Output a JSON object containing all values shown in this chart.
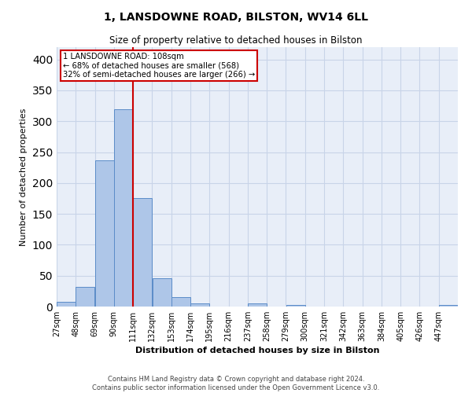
{
  "title1": "1, LANSDOWNE ROAD, BILSTON, WV14 6LL",
  "title2": "Size of property relative to detached houses in Bilston",
  "xlabel": "Distribution of detached houses by size in Bilston",
  "ylabel": "Number of detached properties",
  "bar_labels": [
    "27sqm",
    "48sqm",
    "69sqm",
    "90sqm",
    "111sqm",
    "132sqm",
    "153sqm",
    "174sqm",
    "195sqm",
    "216sqm",
    "237sqm",
    "258sqm",
    "279sqm",
    "300sqm",
    "321sqm",
    "342sqm",
    "363sqm",
    "384sqm",
    "405sqm",
    "426sqm",
    "447sqm"
  ],
  "bar_values": [
    8,
    32,
    237,
    320,
    175,
    46,
    15,
    5,
    0,
    0,
    5,
    0,
    3,
    0,
    0,
    0,
    0,
    0,
    0,
    0,
    3
  ],
  "bar_color": "#aec6e8",
  "bar_edge_color": "#5b8cc8",
  "property_line_label": "1 LANSDOWNE ROAD: 108sqm",
  "annotation_line1": "← 68% of detached houses are smaller (568)",
  "annotation_line2": "32% of semi-detached houses are larger (266) →",
  "vline_color": "#cc0000",
  "annotation_box_color": "#ffffff",
  "annotation_box_edge": "#cc0000",
  "ylim": [
    0,
    420
  ],
  "yticks": [
    0,
    50,
    100,
    150,
    200,
    250,
    300,
    350,
    400
  ],
  "grid_color": "#c8d4e8",
  "background_color": "#e8eef8",
  "footer1": "Contains HM Land Registry data © Crown copyright and database right 2024.",
  "footer2": "Contains public sector information licensed under the Open Government Licence v3.0.",
  "bin_width": 21,
  "vline_x": 111
}
